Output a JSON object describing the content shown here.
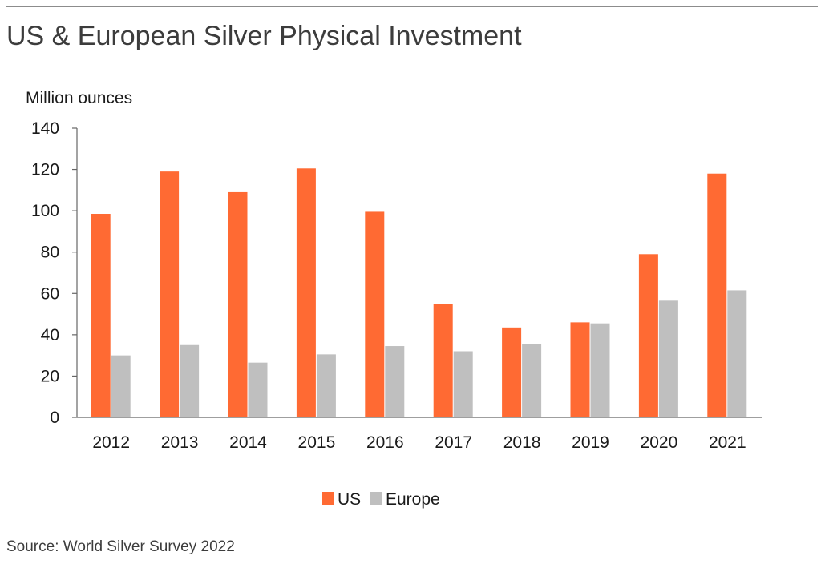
{
  "title": "US & European Silver Physical Investment",
  "source": "Source: World Silver Survey 2022",
  "colors": {
    "US": "#ff6a33",
    "Europe": "#bfbfbf",
    "axis": "#666666"
  },
  "chart_data": {
    "type": "bar",
    "ylabel": "Million ounces",
    "xlabel": "",
    "ylim": [
      0,
      140
    ],
    "yticks": [
      0,
      20,
      40,
      60,
      80,
      100,
      120,
      140
    ],
    "grid": false,
    "legend_position": "bottom-center",
    "categories": [
      "2012",
      "2013",
      "2014",
      "2015",
      "2016",
      "2017",
      "2018",
      "2019",
      "2020",
      "2021"
    ],
    "series": [
      {
        "name": "US",
        "values": [
          98.5,
          119,
          109,
          120.5,
          99.5,
          55,
          43.5,
          46,
          79,
          118
        ]
      },
      {
        "name": "Europe",
        "values": [
          30,
          35,
          26.5,
          30.5,
          34.5,
          32,
          35.5,
          45.5,
          56.5,
          61.5
        ]
      }
    ]
  }
}
